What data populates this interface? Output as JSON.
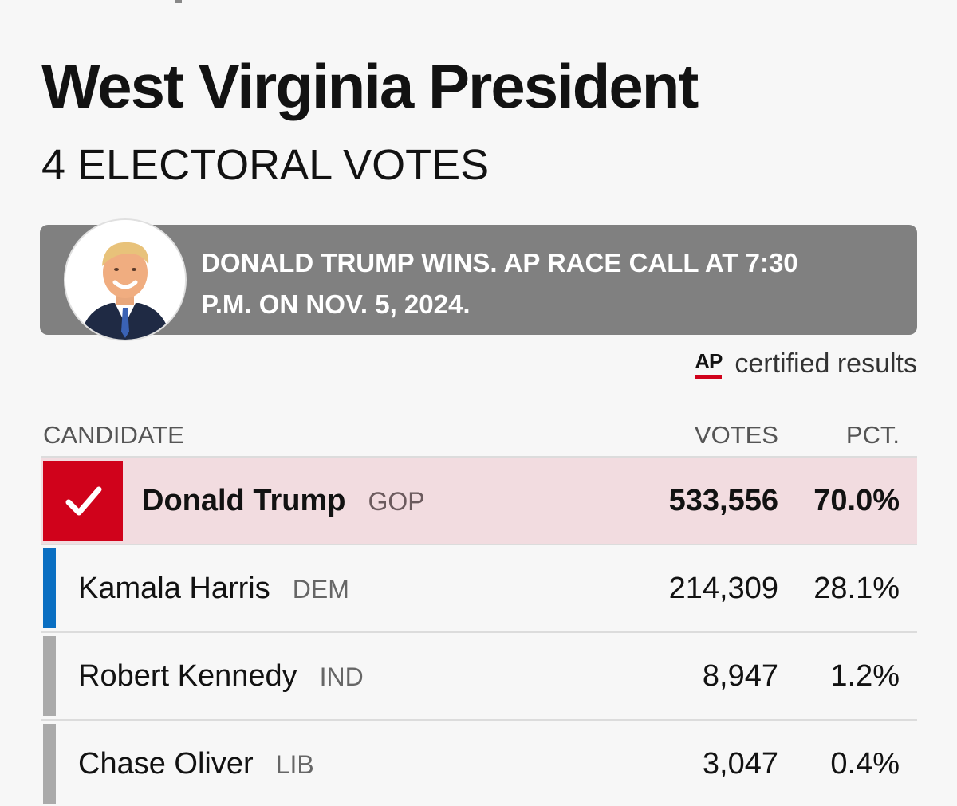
{
  "race": {
    "title": "West Virginia President",
    "subtitle": "4 ELECTORAL VOTES"
  },
  "call_banner": {
    "text": "DONALD TRUMP WINS. AP RACE CALL AT 7:30 P.M. ON NOV. 5, 2024.",
    "avatar_icon": "candidate-photo"
  },
  "certification": {
    "logo": "AP",
    "label": "certified results",
    "logo_accent_color": "#d0021b"
  },
  "table": {
    "headers": {
      "candidate": "CANDIDATE",
      "votes": "VOTES",
      "pct": "PCT."
    },
    "rows": [
      {
        "name": "Donald Trump",
        "party": "GOP",
        "votes": "533,556",
        "pct": "70.0%",
        "winner": true,
        "color": "#d0021b"
      },
      {
        "name": "Kamala Harris",
        "party": "DEM",
        "votes": "214,309",
        "pct": "28.1%",
        "winner": false,
        "color": "#0a6fc2"
      },
      {
        "name": "Robert Kennedy",
        "party": "IND",
        "votes": "8,947",
        "pct": "1.2%",
        "winner": false,
        "color": "#aaaaaa"
      },
      {
        "name": "Chase Oliver",
        "party": "LIB",
        "votes": "3,047",
        "pct": "0.4%",
        "winner": false,
        "color": "#aaaaaa"
      }
    ]
  },
  "colors": {
    "banner_bg": "#808080",
    "winner_row_bg": "#f2dce0",
    "gop": "#d0021b",
    "dem": "#0a6fc2",
    "other": "#aaaaaa"
  }
}
